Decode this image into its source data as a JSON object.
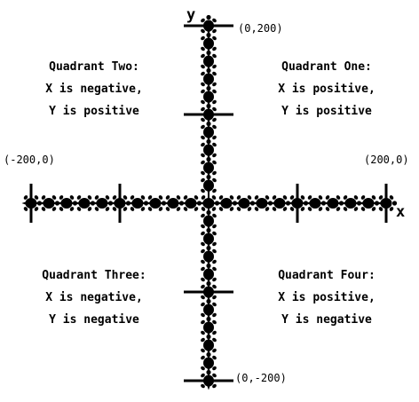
{
  "axes": {
    "x_label": "x",
    "y_label": "y",
    "x_range": [
      -200,
      200
    ],
    "y_range": [
      -200,
      200
    ],
    "tick_step": 20,
    "major_tick_step": 100,
    "color": "#000000"
  },
  "endpoints": {
    "top": "(0,200)",
    "bottom": "(0,-200)",
    "left": "(-200,0)",
    "right": "(200,0)"
  },
  "quadrants": {
    "one": {
      "title": "Quadrant One:",
      "x_sign": "X is positive,",
      "y_sign": "Y is positive"
    },
    "two": {
      "title": "Quadrant Two:",
      "x_sign": "X is negative,",
      "y_sign": "Y is positive"
    },
    "three": {
      "title": "Quadrant Three:",
      "x_sign": "X is negative,",
      "y_sign": "Y is negative"
    },
    "four": {
      "title": "Quadrant Four:",
      "x_sign": "X is positive,",
      "y_sign": "Y is negative"
    }
  },
  "markers": {
    "icon": "turtle-stamp-icon",
    "color": "#000000"
  }
}
